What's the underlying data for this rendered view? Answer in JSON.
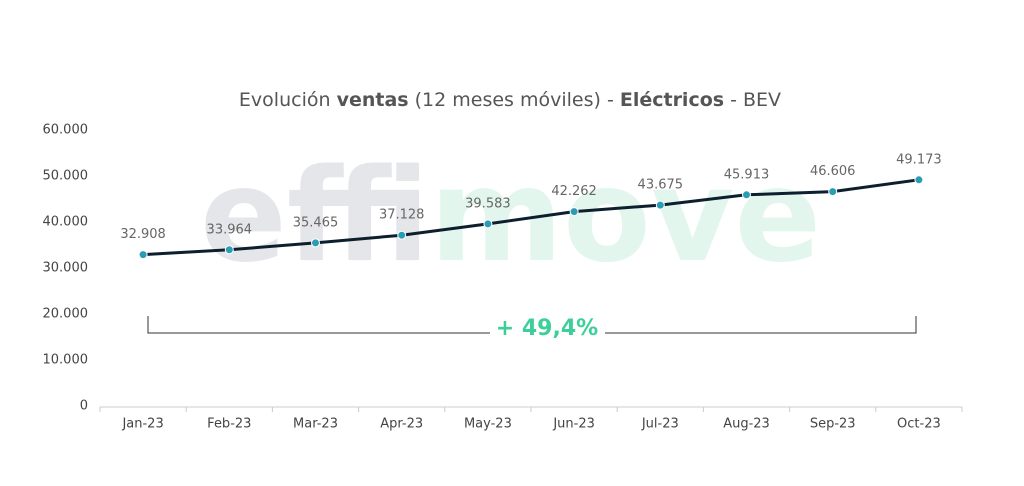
{
  "chart_data": {
    "type": "line",
    "title": [
      {
        "text": "Evolución ",
        "bold": false
      },
      {
        "text": "ventas",
        "bold": true
      },
      {
        "text": " (12 meses móviles) - ",
        "bold": false
      },
      {
        "text": "Eléctricos",
        "bold": true
      },
      {
        "text": " - BEV",
        "bold": false
      }
    ],
    "watermark": [
      {
        "text": "effi",
        "color": "#e4e6ea"
      },
      {
        "text": "move",
        "color": "#e3f6ee"
      }
    ],
    "categories": [
      "Jan-23",
      "Feb-23",
      "Mar-23",
      "Apr-23",
      "May-23",
      "Jun-23",
      "Jul-23",
      "Aug-23",
      "Sep-23",
      "Oct-23"
    ],
    "values": [
      32908,
      33964,
      35465,
      37128,
      39583,
      42262,
      43675,
      45913,
      46606,
      49173
    ],
    "value_labels": [
      "32.908",
      "33.964",
      "35.465",
      "37.128",
      "39.583",
      "42.262",
      "43.675",
      "45.913",
      "46.606",
      "49.173"
    ],
    "color": "#0d1f2d",
    "marker_color": "#2a9db5",
    "ylim": [
      0,
      60000
    ],
    "yticks": [
      {
        "value": 0,
        "label": "0"
      },
      {
        "value": 10000,
        "label": "10.000"
      },
      {
        "value": 20000,
        "label": "20.000"
      },
      {
        "value": 30000,
        "label": "30.000"
      },
      {
        "value": 40000,
        "label": "40.000"
      },
      {
        "value": 50000,
        "label": "50.000"
      },
      {
        "value": 60000,
        "label": "60.000"
      }
    ],
    "grid": false,
    "annotation": {
      "text": "+ 49,4%",
      "color": "#3dcf9a"
    }
  }
}
